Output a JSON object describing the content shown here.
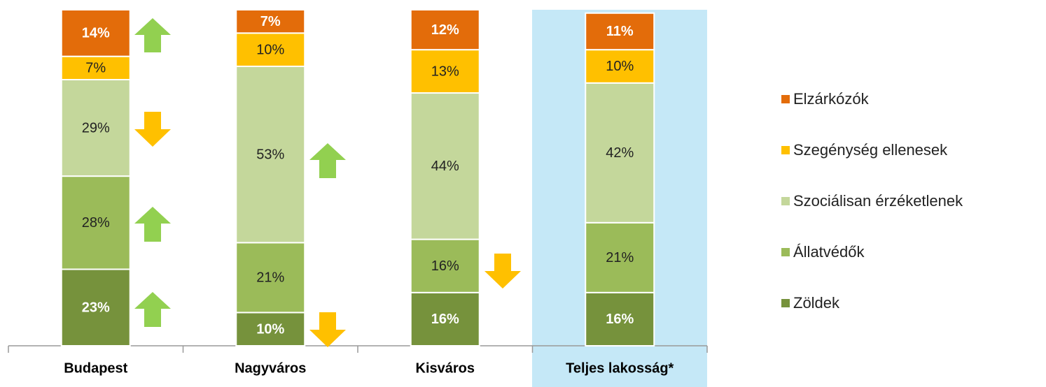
{
  "chart_data": {
    "type": "stacked_bar",
    "categories": [
      "Budapest",
      "Nagyváros",
      "Kisváros",
      "Teljes lakosság*"
    ],
    "series": [
      {
        "name": "Zöldek",
        "color": "#76923c",
        "label_color": "#ffffff",
        "bold": true,
        "values": [
          23,
          10,
          16,
          16
        ],
        "value_labels": [
          "23%",
          "10%",
          "16%",
          "16%"
        ]
      },
      {
        "name": "Állatvédők",
        "color": "#9bbb59",
        "label_color": "#222222",
        "bold": false,
        "values": [
          28,
          21,
          16,
          21
        ],
        "value_labels": [
          "28%",
          "21%",
          "16%",
          "21%"
        ]
      },
      {
        "name": "Szociálisan érzéketlenek",
        "color": "#c4d79b",
        "label_color": "#222222",
        "bold": false,
        "values": [
          29,
          53,
          44,
          42
        ],
        "value_labels": [
          "29%",
          "53%",
          "44%",
          "42%"
        ]
      },
      {
        "name": "Szegénység ellenesek",
        "color": "#ffc000",
        "label_color": "#222222",
        "bold": false,
        "values": [
          7,
          10,
          13,
          10
        ],
        "value_labels": [
          "7%",
          "10%",
          "13%",
          "10%"
        ]
      },
      {
        "name": "Elzárkózók",
        "color": "#e36c0a",
        "label_color": "#ffffff",
        "bold": true,
        "values": [
          14,
          7,
          12,
          11
        ],
        "value_labels": [
          "14%",
          "7%",
          "12%",
          "11%"
        ]
      }
    ],
    "legend": "right"
  }
}
